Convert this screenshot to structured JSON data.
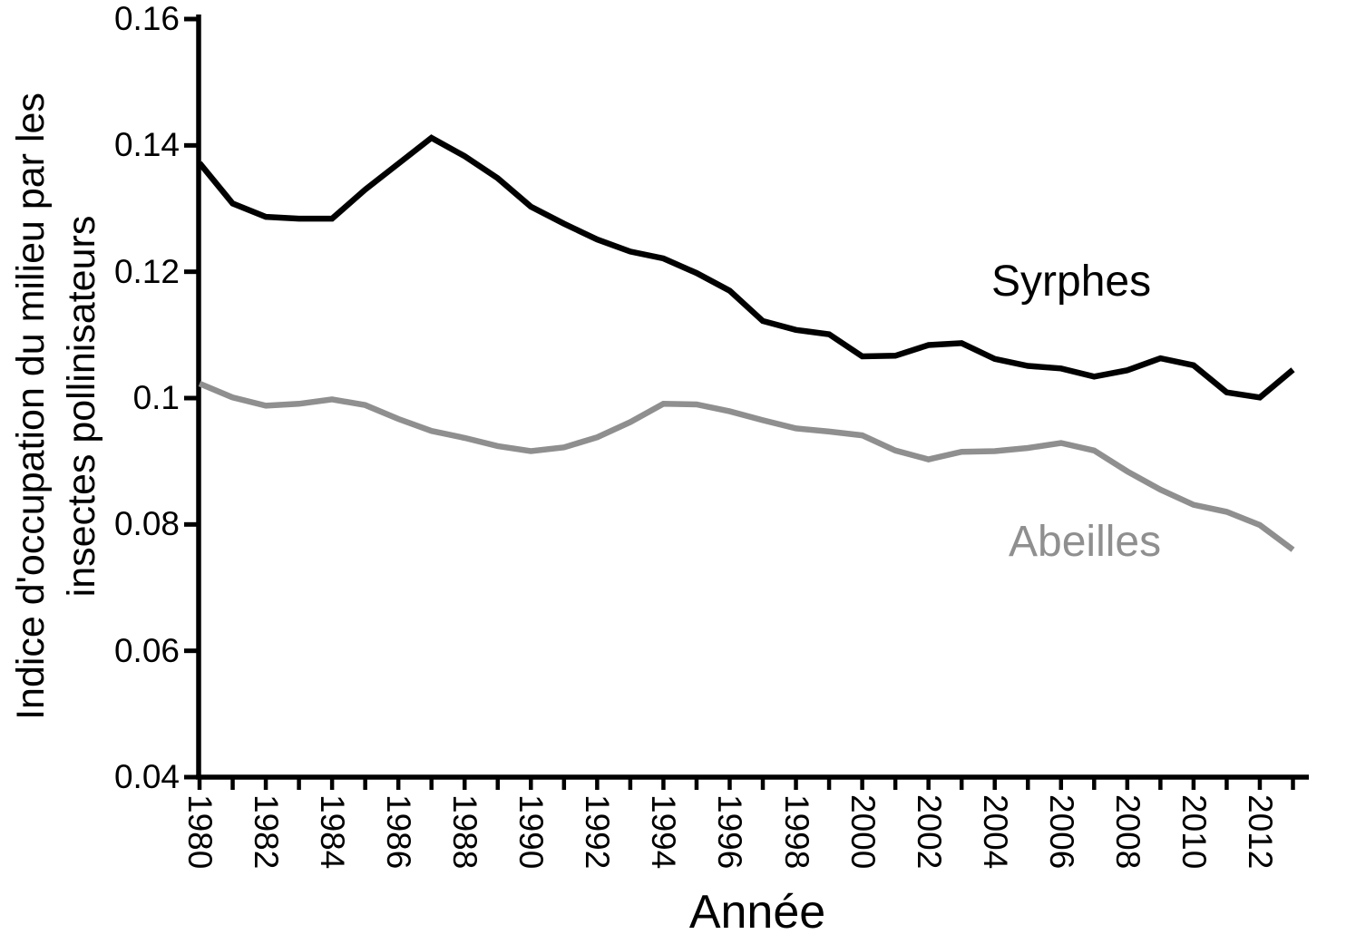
{
  "y_axis": {
    "title_lines": [
      "Indice d'occupation du milieu par les",
      "insectes pollinisateurs"
    ],
    "tick_labels": [
      "0.16",
      "0.14",
      "0.12",
      "0.1",
      "0.08",
      "0.06",
      "0.04"
    ],
    "tick_values": [
      0.16,
      0.14,
      0.12,
      0.1,
      0.08,
      0.06,
      0.04
    ]
  },
  "x_axis": {
    "title": "Année",
    "tick_values": [
      1980,
      1981,
      1982,
      1983,
      1984,
      1985,
      1986,
      1987,
      1988,
      1989,
      1990,
      1991,
      1992,
      1993,
      1994,
      1995,
      1996,
      1997,
      1998,
      1999,
      2000,
      2001,
      2002,
      2003,
      2004,
      2005,
      2006,
      2007,
      2008,
      2009,
      2010,
      2011,
      2012,
      2013
    ],
    "labeled_ticks": [
      1980,
      1982,
      1984,
      1986,
      1988,
      1990,
      1992,
      1994,
      1996,
      1998,
      2000,
      2002,
      2004,
      2006,
      2008,
      2010,
      2012
    ]
  },
  "colors": {
    "syrphes": "#000000",
    "abeilles": "#8f8f8f",
    "axis": "#000000"
  },
  "chart_data": {
    "type": "line",
    "title": "",
    "xlabel": "Année",
    "ylabel": "Indice d'occupation du milieu par les insectes pollinisateurs",
    "xlim": [
      1980,
      2013.5
    ],
    "ylim": [
      0.04,
      0.16
    ],
    "grid": false,
    "legend_position": "inline-labels",
    "x": [
      1980,
      1981,
      1982,
      1983,
      1984,
      1985,
      1986,
      1987,
      1988,
      1989,
      1990,
      1991,
      1992,
      1993,
      1994,
      1995,
      1996,
      1997,
      1998,
      1999,
      2000,
      2001,
      2002,
      2003,
      2004,
      2005,
      2006,
      2007,
      2008,
      2009,
      2010,
      2011,
      2012,
      2013
    ],
    "series": [
      {
        "name": "Syrphes",
        "color": "#000000",
        "values": [
          0.1372,
          0.1308,
          0.1287,
          0.1284,
          0.1284,
          0.133,
          0.1371,
          0.1412,
          0.1383,
          0.1348,
          0.1303,
          0.1276,
          0.1251,
          0.1232,
          0.1221,
          0.1198,
          0.117,
          0.1122,
          0.1108,
          0.1101,
          0.1066,
          0.1067,
          0.1084,
          0.1087,
          0.1062,
          0.1051,
          0.1047,
          0.1034,
          0.1044,
          0.1063,
          0.1052,
          0.1009,
          0.1001,
          0.1045
        ]
      },
      {
        "name": "Abeilles",
        "color": "#8f8f8f",
        "values": [
          0.1023,
          0.1001,
          0.0988,
          0.0991,
          0.0998,
          0.0989,
          0.0967,
          0.0948,
          0.0937,
          0.0924,
          0.0916,
          0.0922,
          0.0938,
          0.0962,
          0.0991,
          0.099,
          0.0979,
          0.0965,
          0.0952,
          0.0947,
          0.0941,
          0.0917,
          0.0903,
          0.0915,
          0.0916,
          0.0921,
          0.0929,
          0.0917,
          0.0884,
          0.0855,
          0.0831,
          0.082,
          0.0799,
          0.076
        ]
      }
    ]
  }
}
